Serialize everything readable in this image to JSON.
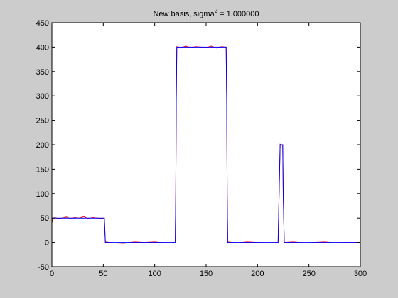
{
  "chart_data": {
    "type": "line",
    "title": "New basis, sigma",
    "title_superscript": "2",
    "title_suffix": " = 1.000000",
    "xlabel": "",
    "ylabel": "",
    "xlim": [
      0,
      300
    ],
    "ylim": [
      -50,
      450
    ],
    "xticks": [
      0,
      50,
      100,
      150,
      200,
      250,
      300
    ],
    "yticks": [
      -50,
      0,
      50,
      100,
      150,
      200,
      250,
      300,
      350,
      400,
      450
    ],
    "grid": false,
    "legend": "none",
    "series": [
      {
        "color": "#0000ff",
        "x": [
          0,
          51,
          52,
          120,
          120.5,
          121,
          121.5,
          169.5,
          170,
          170.5,
          171,
          220,
          221,
          222,
          224.5,
          225,
          226,
          300
        ],
        "y": [
          50,
          50,
          0,
          0,
          100,
          300,
          400,
          400,
          300,
          100,
          0,
          0,
          100,
          200,
          200,
          100,
          0,
          0
        ]
      },
      {
        "color": "#ff0000",
        "x": [
          0,
          1,
          3,
          6,
          10,
          14,
          18,
          22,
          27,
          31,
          35,
          40,
          44,
          48,
          51,
          52,
          60,
          70,
          80,
          90,
          100,
          110,
          120,
          120.5,
          121,
          121.5,
          125,
          130,
          135,
          140,
          145,
          150,
          155,
          160,
          165,
          169.5,
          170,
          170.5,
          171,
          180,
          190,
          200,
          210,
          220,
          221,
          222,
          223.5,
          224.5,
          225,
          226,
          235,
          245,
          255,
          265,
          275,
          285,
          300
        ],
        "y": [
          40,
          49,
          51,
          49,
          50,
          52,
          49,
          51,
          50,
          53,
          49,
          51,
          50,
          49,
          50,
          1,
          -1,
          -2,
          1,
          0,
          1,
          -1,
          0,
          100,
          300,
          401,
          398,
          402,
          399,
          401,
          400,
          399,
          402,
          398,
          401,
          400,
          300,
          100,
          1,
          -1,
          1,
          0,
          -1,
          0,
          100,
          201,
          199,
          200,
          100,
          0,
          1,
          -1,
          0,
          1,
          -1,
          0,
          0
        ]
      }
    ]
  }
}
